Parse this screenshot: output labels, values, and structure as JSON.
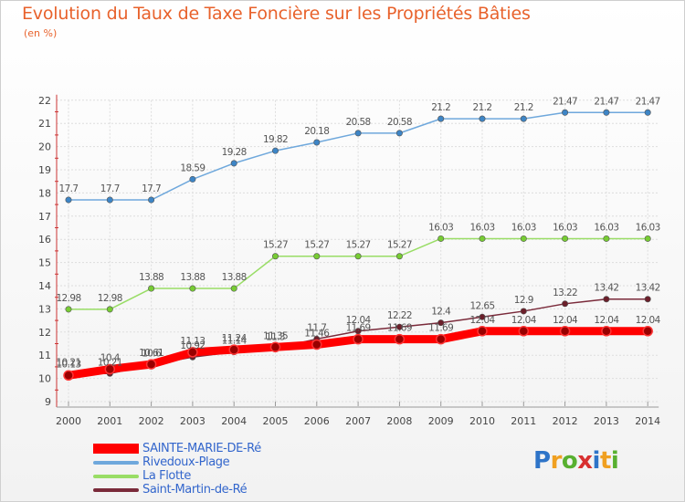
{
  "title": "Evolution du Taux de Taxe Foncière sur les Propriétés Bâties",
  "unit_label": "(en %)",
  "logo": {
    "text": "Proxiti",
    "colors": [
      "#2e74c8",
      "#f0a020",
      "#58b030",
      "#d83030",
      "#2e74c8",
      "#f0a020",
      "#58b030"
    ]
  },
  "chart_data": {
    "type": "line",
    "title": "Evolution du Taux de Taxe Foncière sur les Propriétés Bâties",
    "ylabel": "(en %)",
    "xlabel": "",
    "x": [
      "2000",
      "2001",
      "2002",
      "2003",
      "2004",
      "2005",
      "2006",
      "2007",
      "2008",
      "2009",
      "2010",
      "2011",
      "2012",
      "2013",
      "2014"
    ],
    "ylim": [
      9,
      22
    ],
    "yticks": [
      "9",
      "10",
      "11",
      "12",
      "13",
      "14",
      "15",
      "16",
      "17",
      "18",
      "19",
      "20",
      "21",
      "22"
    ],
    "grid": true,
    "legend_position": "bottom-left",
    "series": [
      {
        "name": "SAINTE-MARIE-DE-Ré",
        "color": "#ff0000",
        "values": [
          10.13,
          10.4,
          10.61,
          11.13,
          11.24,
          11.35,
          11.46,
          11.69,
          11.69,
          11.69,
          12.04,
          12.04,
          12.04,
          12.04,
          12.04
        ],
        "labels": [
          "10.13",
          "10.4",
          "10.61",
          "11.13",
          "11.24",
          "11.35",
          "11.46",
          "11.69",
          "11.69",
          "11.69",
          "12.04",
          "12.04",
          "12.04",
          "12.04",
          "12.04"
        ]
      },
      {
        "name": "Rivedoux-Plage",
        "color": "#6fa8dc",
        "values": [
          17.7,
          17.7,
          17.7,
          18.59,
          19.28,
          19.82,
          20.18,
          20.58,
          20.58,
          21.2,
          21.2,
          21.2,
          21.47,
          21.47,
          21.47
        ],
        "labels": [
          "17.7",
          "17.7",
          "17.7",
          "18.59",
          "19.28",
          "19.82",
          "20.18",
          "20.58",
          "20.58",
          "21.2",
          "21.2",
          "21.2",
          "21.47",
          "21.47",
          "21.47"
        ]
      },
      {
        "name": "La Flotte",
        "color": "#99dd66",
        "values": [
          12.98,
          12.98,
          13.88,
          13.88,
          13.88,
          15.27,
          15.27,
          15.27,
          15.27,
          16.03,
          16.03,
          16.03,
          16.03,
          16.03,
          16.03
        ],
        "labels": [
          "12.98",
          "12.98",
          "13.88",
          "13.88",
          "13.88",
          "15.27",
          "15.27",
          "15.27",
          "15.27",
          "16.03",
          "16.03",
          "16.03",
          "16.03",
          "16.03",
          "16.03"
        ]
      },
      {
        "name": "Saint-Martin-de-Ré",
        "color": "#7a2a3a",
        "values": [
          10.21,
          10.21,
          10.6,
          10.92,
          11.14,
          11.3,
          11.7,
          12.04,
          12.22,
          12.4,
          12.65,
          12.9,
          13.22,
          13.42,
          13.42
        ],
        "labels": [
          "10.21",
          "10.21",
          "10.6",
          "10.92",
          "11.14",
          "11.3",
          "11.7",
          "12.04",
          "12.22",
          "12.4",
          "12.65",
          "12.9",
          "13.22",
          "13.42",
          "13.42"
        ]
      }
    ]
  }
}
